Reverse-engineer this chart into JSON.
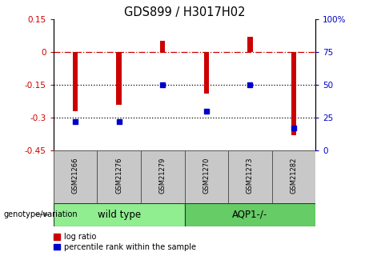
{
  "title": "GDS899 / H3017H02",
  "categories": [
    "GSM21266",
    "GSM21276",
    "GSM21279",
    "GSM21270",
    "GSM21273",
    "GSM21282"
  ],
  "log_ratio": [
    -0.27,
    -0.24,
    0.05,
    -0.19,
    0.07,
    -0.38
  ],
  "percentile_rank": [
    22,
    22,
    50,
    30,
    50,
    17
  ],
  "bar_color": "#cc0000",
  "dot_color": "#0000cc",
  "ylim_left": [
    -0.45,
    0.15
  ],
  "ylim_right": [
    0,
    100
  ],
  "yticks_left": [
    0.15,
    0.0,
    -0.15,
    -0.3,
    -0.45
  ],
  "yticks_right": [
    100,
    75,
    50,
    25,
    0
  ],
  "hline_zero_color": "#cc0000",
  "hline_color": "#000000",
  "hlines": [
    -0.15,
    -0.3
  ],
  "tick_label_area_color": "#c8c8c8",
  "wt_color": "#90ee90",
  "aqp_color": "#66cc66",
  "legend_labels": [
    "log ratio",
    "percentile rank within the sample"
  ],
  "genotype_label": "genotype/variation",
  "bar_width": 0.12
}
